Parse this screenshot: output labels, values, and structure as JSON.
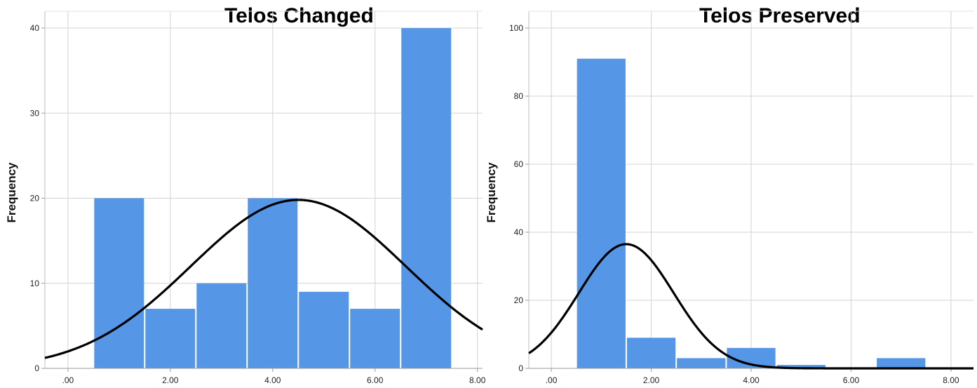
{
  "chart_data": [
    {
      "type": "bar",
      "title": "Telos Changed",
      "xlabel": "",
      "ylabel": "Frequency",
      "x_ticks": [
        ".00",
        "2.00",
        "4.00",
        "6.00",
        "8.00"
      ],
      "x_tick_values": [
        0,
        2,
        4,
        6,
        8
      ],
      "xlim": [
        -0.45,
        8.1
      ],
      "y_ticks": [
        "0",
        "10",
        "20",
        "30",
        "40"
      ],
      "y_tick_values": [
        0,
        10,
        20,
        30,
        40
      ],
      "ylim": [
        0,
        40
      ],
      "bins": [
        {
          "x0": 0.5,
          "x1": 1.5,
          "value": 20
        },
        {
          "x0": 1.5,
          "x1": 2.5,
          "value": 7
        },
        {
          "x0": 2.5,
          "x1": 3.5,
          "value": 10
        },
        {
          "x0": 3.5,
          "x1": 4.5,
          "value": 20
        },
        {
          "x0": 4.5,
          "x1": 5.5,
          "value": 9
        },
        {
          "x0": 5.5,
          "x1": 6.5,
          "value": 7
        },
        {
          "x0": 6.5,
          "x1": 7.5,
          "value": 40
        }
      ],
      "normal_curve": {
        "mean": 4.5,
        "peak": 19.8,
        "sd": 2.1
      },
      "grid": true,
      "bar_color": "#5596e6"
    },
    {
      "type": "bar",
      "title": "Telos Preserved",
      "xlabel": "",
      "ylabel": "Frequency",
      "x_ticks": [
        ".00",
        "2.00",
        "4.00",
        "6.00",
        "8.00"
      ],
      "x_tick_values": [
        0,
        2,
        4,
        6,
        8
      ],
      "xlim": [
        -0.45,
        8.45
      ],
      "y_ticks": [
        "0",
        "20",
        "40",
        "60",
        "80",
        "100"
      ],
      "y_tick_values": [
        0,
        20,
        40,
        60,
        80,
        100
      ],
      "ylim": [
        0,
        100
      ],
      "bins": [
        {
          "x0": 0.5,
          "x1": 1.5,
          "value": 91
        },
        {
          "x0": 1.5,
          "x1": 2.5,
          "value": 9
        },
        {
          "x0": 2.5,
          "x1": 3.5,
          "value": 3
        },
        {
          "x0": 3.5,
          "x1": 4.5,
          "value": 6
        },
        {
          "x0": 4.5,
          "x1": 5.5,
          "value": 1
        },
        {
          "x0": 5.5,
          "x1": 6.5,
          "value": 0
        },
        {
          "x0": 6.5,
          "x1": 7.5,
          "value": 3
        }
      ],
      "normal_curve": {
        "mean": 1.5,
        "peak": 36.5,
        "sd": 0.95
      },
      "grid": true,
      "bar_color": "#5596e6"
    }
  ]
}
